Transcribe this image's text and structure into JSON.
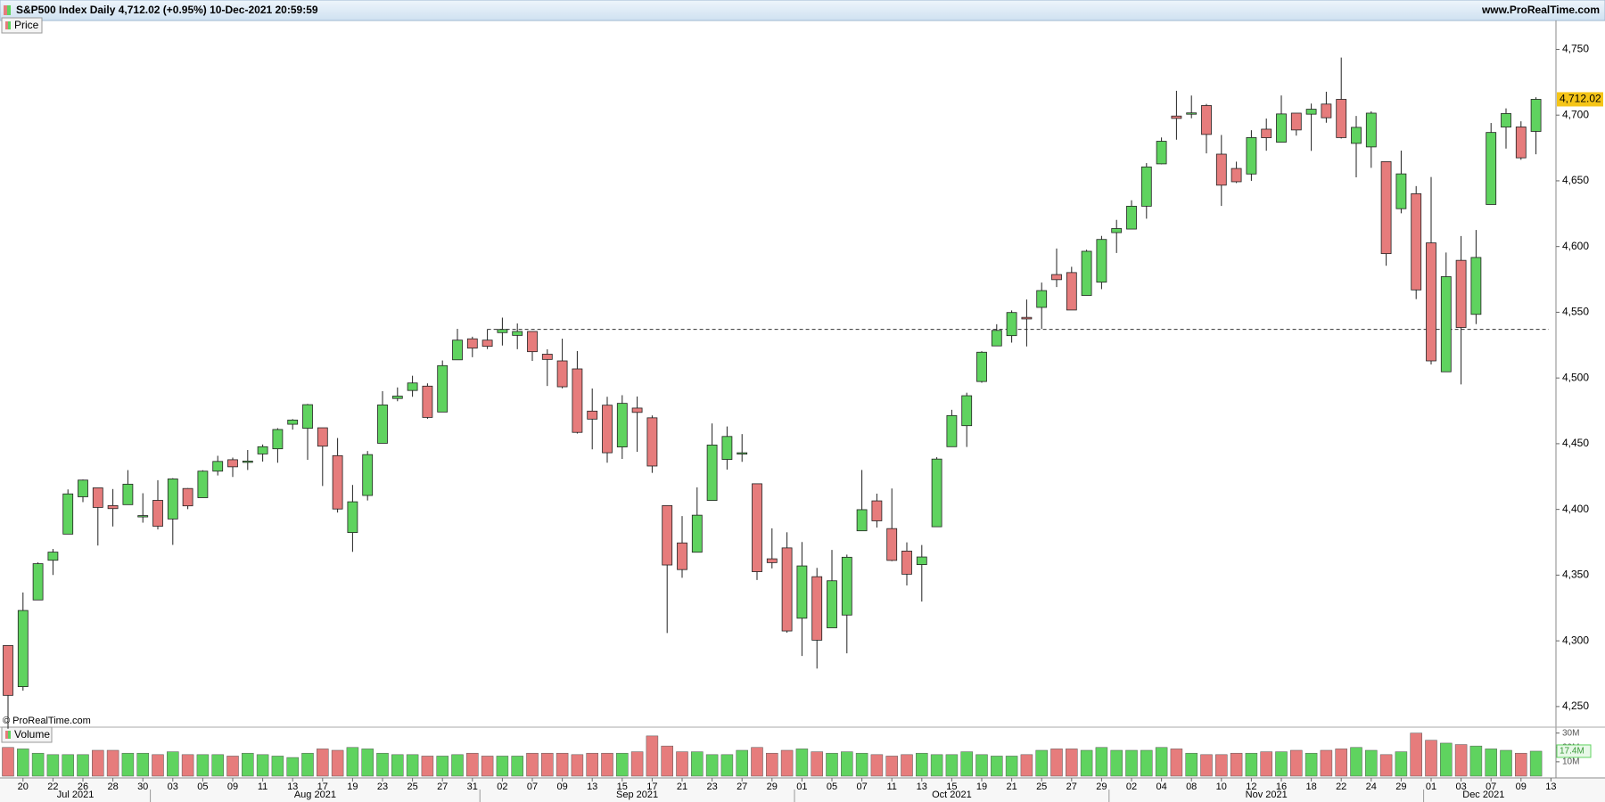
{
  "chart_data": {
    "type": "candlestick",
    "title": "S&P500 Index Daily 4,712.02 (+0.95%) 10-Dec-2021 20:59:59",
    "source": "www.ProRealTime.com",
    "copyright": "© ProRealTime.com",
    "price_legend": "Price",
    "volume_legend": "Volume",
    "x": [
      "2021-07-19",
      "2021-07-20",
      "2021-07-21",
      "2021-07-22",
      "2021-07-23",
      "2021-07-26",
      "2021-07-27",
      "2021-07-28",
      "2021-07-29",
      "2021-07-30",
      "2021-08-02",
      "2021-08-03",
      "2021-08-04",
      "2021-08-05",
      "2021-08-06",
      "2021-08-09",
      "2021-08-10",
      "2021-08-11",
      "2021-08-12",
      "2021-08-13",
      "2021-08-16",
      "2021-08-17",
      "2021-08-18",
      "2021-08-19",
      "2021-08-20",
      "2021-08-23",
      "2021-08-24",
      "2021-08-25",
      "2021-08-26",
      "2021-08-27",
      "2021-08-30",
      "2021-08-31",
      "2021-09-01",
      "2021-09-02",
      "2021-09-03",
      "2021-09-07",
      "2021-09-08",
      "2021-09-09",
      "2021-09-10",
      "2021-09-13",
      "2021-09-14",
      "2021-09-15",
      "2021-09-16",
      "2021-09-17",
      "2021-09-20",
      "2021-09-21",
      "2021-09-22",
      "2021-09-23",
      "2021-09-24",
      "2021-09-27",
      "2021-09-28",
      "2021-09-29",
      "2021-09-30",
      "2021-10-01",
      "2021-10-04",
      "2021-10-05",
      "2021-10-06",
      "2021-10-07",
      "2021-10-08",
      "2021-10-11",
      "2021-10-12",
      "2021-10-13",
      "2021-10-14",
      "2021-10-15",
      "2021-10-18",
      "2021-10-19",
      "2021-10-20",
      "2021-10-21",
      "2021-10-22",
      "2021-10-25",
      "2021-10-26",
      "2021-10-27",
      "2021-10-28",
      "2021-10-29",
      "2021-11-01",
      "2021-11-02",
      "2021-11-03",
      "2021-11-04",
      "2021-11-05",
      "2021-11-08",
      "2021-11-09",
      "2021-11-10",
      "2021-11-11",
      "2021-11-12",
      "2021-11-15",
      "2021-11-16",
      "2021-11-17",
      "2021-11-18",
      "2021-11-19",
      "2021-11-22",
      "2021-11-23",
      "2021-11-24",
      "2021-11-26",
      "2021-11-29",
      "2021-11-30",
      "2021-12-01",
      "2021-12-02",
      "2021-12-03",
      "2021-12-06",
      "2021-12-07",
      "2021-12-08",
      "2021-12-09",
      "2021-12-10"
    ],
    "open": [
      4296.4,
      4265.1,
      4331.1,
      4361.3,
      4381.2,
      4409.6,
      4416.4,
      4402.9,
      4403.6,
      4395.1,
      4406.9,
      4392.7,
      4415.9,
      4408.9,
      4429.1,
      4437.8,
      4435.8,
      4442.2,
      4446.1,
      4464.8,
      4461.7,
      4462.1,
      4440.9,
      4382.4,
      4410.6,
      4450.3,
      4484.4,
      4490.5,
      4493.8,
      4474.1,
      4513.8,
      4529.8,
      4528.8,
      4534.5,
      4532.4,
      4535.4,
      4518.1,
      4513.0,
      4506.9,
      4474.8,
      4479.3,
      4447.5,
      4477.1,
      4469.7,
      4402.9,
      4374.5,
      4367.4,
      4406.8,
      4438.0,
      4442.1,
      4419.5,
      4362.4,
      4370.7,
      4317.2,
      4348.8,
      4309.9,
      4319.6,
      4383.7,
      4406.5,
      4385.4,
      4368.3,
      4358.0,
      4386.8,
      4447.7,
      4463.7,
      4497.3,
      4524.4,
      4532.2,
      4546.1,
      4553.7,
      4578.7,
      4580.2,
      4562.8,
      4572.9,
      4610.6,
      4613.3,
      4630.7,
      4662.9,
      4699.3,
      4701.5,
      4707.3,
      4670.3,
      4659.4,
      4655.2,
      4689.3,
      4679.4,
      4701.5,
      4700.7,
      4708.4,
      4712.0,
      4678.5,
      4675.8,
      4664.6,
      4628.8,
      4640.2,
      4602.8,
      4504.7,
      4589.5,
      4548.4,
      4632.0,
      4690.9,
      4691.0,
      4687.6
    ],
    "high": [
      4296.4,
      4336.8,
      4359.7,
      4369.9,
      4415.2,
      4422.7,
      4416.4,
      4415.5,
      4429.9,
      4412.3,
      4422.2,
      4423.8,
      4416.2,
      4429.8,
      4440.8,
      4439.4,
      4445.2,
      4449.4,
      4461.8,
      4468.7,
      4480.3,
      4462.1,
      4454.3,
      4418.6,
      4444.4,
      4489.9,
      4492.8,
      4501.7,
      4495.9,
      4513.3,
      4537.4,
      4531.4,
      4537.1,
      4545.9,
      4541.5,
      4535.4,
      4521.8,
      4529.9,
      4520.5,
      4492.0,
      4485.7,
      4486.9,
      4485.9,
      4471.5,
      4402.9,
      4394.9,
      4416.8,
      4465.4,
      4463.1,
      4457.3,
      4419.5,
      4385.6,
      4382.6,
      4375.2,
      4355.5,
      4369.2,
      4365.6,
      4430.0,
      4412.0,
      4415.9,
      4374.9,
      4372.9,
      4439.7,
      4475.8,
      4488.8,
      4520.4,
      4540.9,
      4551.4,
      4559.7,
      4572.6,
      4598.5,
      4584.6,
      4597.6,
      4608.1,
      4620.3,
      4635.2,
      4663.5,
      4683.0,
      4718.5,
      4714.9,
      4708.5,
      4684.9,
      4664.6,
      4688.5,
      4697.4,
      4715.0,
      4701.5,
      4708.8,
      4717.8,
      4743.8,
      4699.4,
      4702.9,
      4664.6,
      4673.0,
      4646.0,
      4652.9,
      4595.5,
      4608.0,
      4612.6,
      4694.0,
      4705.1,
      4695.3,
      4713.6
    ],
    "low": [
      4233.1,
      4262.1,
      4331.1,
      4350.1,
      4381.2,
      4405.5,
      4372.5,
      4387.0,
      4403.6,
      4389.9,
      4384.8,
      4373.0,
      4400.2,
      4408.9,
      4425.8,
      4424.7,
      4430.0,
      4436.4,
      4435.5,
      4460.7,
      4437.7,
      4417.8,
      4397.6,
      4367.7,
      4406.8,
      4450.3,
      4482.3,
      4485.7,
      4468.9,
      4474.1,
      4513.8,
      4515.8,
      4522.0,
      4524.7,
      4521.9,
      4513.0,
      4493.9,
      4492.1,
      4457.7,
      4445.7,
      4435.5,
      4438.4,
      4443.8,
      4427.8,
      4305.9,
      4348.0,
      4367.4,
      4406.8,
      4430.3,
      4436.2,
      4346.3,
      4355.1,
      4306.2,
      4288.5,
      4278.9,
      4309.9,
      4290.5,
      4383.7,
      4386.2,
      4360.6,
      4342.1,
      4329.9,
      4386.8,
      4447.7,
      4447.5,
      4496.4,
      4524.4,
      4526.9,
      4524.0,
      4537.4,
      4569.2,
      4551.7,
      4562.8,
      4567.6,
      4595.1,
      4613.3,
      4621.2,
      4662.6,
      4681.3,
      4697.6,
      4670.9,
      4630.9,
      4648.3,
      4650.0,
      4672.9,
      4679.4,
      4684.4,
      4672.8,
      4694.2,
      4682.2,
      4652.7,
      4659.9,
      4585.4,
      4625.3,
      4560.0,
      4510.3,
      4504.7,
      4495.1,
      4541.0,
      4632.0,
      4674.5,
      4666.0,
      4670.2
    ],
    "close": [
      4258.5,
      4323.1,
      4358.7,
      4367.5,
      4411.8,
      4422.3,
      4401.5,
      4400.6,
      4419.2,
      4395.3,
      4387.2,
      4423.2,
      4402.7,
      4429.1,
      4436.5,
      4432.4,
      4436.8,
      4447.7,
      4460.8,
      4468.0,
      4479.7,
      4448.1,
      4400.3,
      4405.8,
      4441.7,
      4479.5,
      4486.2,
      4496.2,
      4470.0,
      4509.4,
      4528.8,
      4522.7,
      4524.1,
      4536.9,
      4535.4,
      4520.0,
      4514.1,
      4493.3,
      4458.6,
      4468.7,
      4443.1,
      4480.7,
      4473.8,
      4433.0,
      4357.7,
      4354.2,
      4395.6,
      4449.0,
      4455.5,
      4443.1,
      4352.6,
      4359.5,
      4307.5,
      4357.0,
      4300.5,
      4345.7,
      4363.6,
      4399.8,
      4391.3,
      4361.2,
      4350.7,
      4363.8,
      4438.3,
      4471.4,
      4486.5,
      4519.6,
      4536.2,
      4549.8,
      4544.9,
      4566.5,
      4574.8,
      4551.7,
      4596.4,
      4605.4,
      4613.7,
      4630.7,
      4660.6,
      4680.1,
      4697.5,
      4701.7,
      4685.3,
      4646.7,
      4649.3,
      4682.9,
      4682.8,
      4700.9,
      4688.7,
      4704.5,
      4698.0,
      4682.9,
      4690.7,
      4701.5,
      4594.6,
      4655.3,
      4567.0,
      4513.0,
      4577.1,
      4538.4,
      4591.7,
      4686.8,
      4701.2,
      4667.5,
      4712.02
    ],
    "volume": [
      20,
      19,
      16,
      15,
      15,
      15,
      18,
      18,
      16,
      16,
      15,
      17,
      15,
      15,
      15,
      14,
      16,
      15,
      14,
      13,
      16,
      19,
      18,
      20,
      19,
      16,
      15,
      15,
      14,
      14,
      15,
      16,
      14,
      14,
      14,
      16,
      16,
      16,
      15,
      16,
      16,
      16,
      17,
      28,
      21,
      17,
      17,
      15,
      15,
      18,
      20,
      16,
      18,
      19,
      17,
      16,
      17,
      16,
      15,
      14,
      15,
      16,
      15,
      15,
      17,
      15,
      14,
      14,
      15,
      18,
      19,
      19,
      18,
      20,
      18,
      18,
      18,
      20,
      19,
      16,
      15,
      15,
      16,
      16,
      17,
      17,
      18,
      16,
      18,
      19,
      20,
      18,
      15,
      17,
      30,
      25,
      23,
      22,
      21,
      19,
      18,
      16,
      17.4
    ],
    "up_color": "#5fd35f",
    "down_color": "#e67c7c",
    "ylim": [
      4235,
      4772
    ],
    "yticks": [
      {
        "value": 4250,
        "label": "4,250"
      },
      {
        "value": 4300,
        "label": "4,300"
      },
      {
        "value": 4350,
        "label": "4,350"
      },
      {
        "value": 4400,
        "label": "4,400"
      },
      {
        "value": 4450,
        "label": "4,450"
      },
      {
        "value": 4500,
        "label": "4,500"
      },
      {
        "value": 4550,
        "label": "4,550"
      },
      {
        "value": 4600,
        "label": "4,600"
      },
      {
        "value": 4650,
        "label": "4,650"
      },
      {
        "value": 4700,
        "label": "4,700"
      },
      {
        "value": 4750,
        "label": "4,750"
      }
    ],
    "volume_ylim": [
      0,
      33.5
    ],
    "volume_yticks": [
      {
        "value": 10,
        "label": "10M"
      },
      {
        "value": 20,
        "label": "20M"
      },
      {
        "value": 30,
        "label": "30M"
      }
    ],
    "last_price": {
      "value": 4712.02,
      "label": "4,712.02"
    },
    "last_volume": {
      "value": 17.4,
      "label": "17.4M"
    },
    "reference_line": 4537,
    "xticks": [
      {
        "value": "2021-07-20",
        "label": "20"
      },
      {
        "value": "2021-07-22",
        "label": "22"
      },
      {
        "value": "2021-07-26",
        "label": "26"
      },
      {
        "value": "2021-07-28",
        "label": "28"
      },
      {
        "value": "2021-07-30",
        "label": "30"
      },
      {
        "value": "2021-08-03",
        "label": "03"
      },
      {
        "value": "2021-08-05",
        "label": "05"
      },
      {
        "value": "2021-08-09",
        "label": "09"
      },
      {
        "value": "2021-08-11",
        "label": "11"
      },
      {
        "value": "2021-08-13",
        "label": "13"
      },
      {
        "value": "2021-08-17",
        "label": "17"
      },
      {
        "value": "2021-08-19",
        "label": "19"
      },
      {
        "value": "2021-08-23",
        "label": "23"
      },
      {
        "value": "2021-08-25",
        "label": "25"
      },
      {
        "value": "2021-08-27",
        "label": "27"
      },
      {
        "value": "2021-08-31",
        "label": "31"
      },
      {
        "value": "2021-09-02",
        "label": "02"
      },
      {
        "value": "2021-09-07",
        "label": "07"
      },
      {
        "value": "2021-09-09",
        "label": "09"
      },
      {
        "value": "2021-09-13",
        "label": "13"
      },
      {
        "value": "2021-09-15",
        "label": "15"
      },
      {
        "value": "2021-09-17",
        "label": "17"
      },
      {
        "value": "2021-09-21",
        "label": "21"
      },
      {
        "value": "2021-09-23",
        "label": "23"
      },
      {
        "value": "2021-09-27",
        "label": "27"
      },
      {
        "value": "2021-09-29",
        "label": "29"
      },
      {
        "value": "2021-10-01",
        "label": "01"
      },
      {
        "value": "2021-10-05",
        "label": "05"
      },
      {
        "value": "2021-10-07",
        "label": "07"
      },
      {
        "value": "2021-10-11",
        "label": "11"
      },
      {
        "value": "2021-10-13",
        "label": "13"
      },
      {
        "value": "2021-10-15",
        "label": "15"
      },
      {
        "value": "2021-10-19",
        "label": "19"
      },
      {
        "value": "2021-10-21",
        "label": "21"
      },
      {
        "value": "2021-10-25",
        "label": "25"
      },
      {
        "value": "2021-10-27",
        "label": "27"
      },
      {
        "value": "2021-10-29",
        "label": "29"
      },
      {
        "value": "2021-11-02",
        "label": "02"
      },
      {
        "value": "2021-11-04",
        "label": "04"
      },
      {
        "value": "2021-11-08",
        "label": "08"
      },
      {
        "value": "2021-11-10",
        "label": "10"
      },
      {
        "value": "2021-11-12",
        "label": "12"
      },
      {
        "value": "2021-11-16",
        "label": "16"
      },
      {
        "value": "2021-11-18",
        "label": "18"
      },
      {
        "value": "2021-11-22",
        "label": "22"
      },
      {
        "value": "2021-11-24",
        "label": "24"
      },
      {
        "value": "2021-11-29",
        "label": "29"
      },
      {
        "value": "2021-12-01",
        "label": "01"
      },
      {
        "value": "2021-12-03",
        "label": "03"
      },
      {
        "value": "2021-12-07",
        "label": "07"
      },
      {
        "value": "2021-12-09",
        "label": "09"
      },
      {
        "value": "2021-12-13",
        "label": "13"
      }
    ],
    "months": [
      {
        "value": "2021-07",
        "label": "Jul 2021"
      },
      {
        "value": "2021-08",
        "label": "Aug 2021"
      },
      {
        "value": "2021-09",
        "label": "Sep 2021"
      },
      {
        "value": "2021-10",
        "label": "Oct 2021"
      },
      {
        "value": "2021-11",
        "label": "Nov 2021"
      },
      {
        "value": "2021-12",
        "label": "Dec 2021"
      }
    ]
  }
}
